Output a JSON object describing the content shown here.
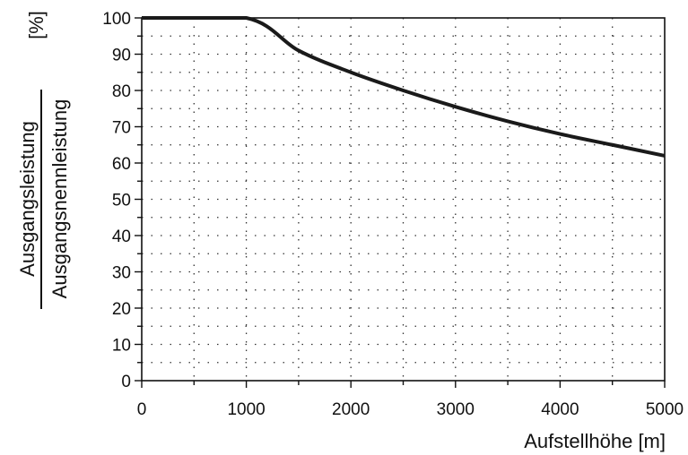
{
  "chart_data": {
    "type": "line",
    "title": "",
    "xlabel": "Aufstellhöhe [m]",
    "ylabel_numerator": "Ausgangsleistung",
    "ylabel_denominator": "Ausgangsnennleistung",
    "ylabel_unit": "[%]",
    "xlim": [
      0,
      5000
    ],
    "ylim": [
      0,
      100
    ],
    "xticks": [
      0,
      1000,
      2000,
      3000,
      4000,
      5000
    ],
    "yticks": [
      0,
      10,
      20,
      30,
      40,
      50,
      60,
      70,
      80,
      90,
      100
    ],
    "grid": "dotted",
    "line_color": "#1a1a1a",
    "series": [
      {
        "x": [
          0,
          1000,
          1500,
          2000,
          2500,
          3000,
          3500,
          4000,
          4500,
          5000
        ],
        "y": [
          100,
          100,
          91,
          85,
          80,
          75.5,
          71.5,
          68,
          65,
          62
        ]
      }
    ]
  }
}
